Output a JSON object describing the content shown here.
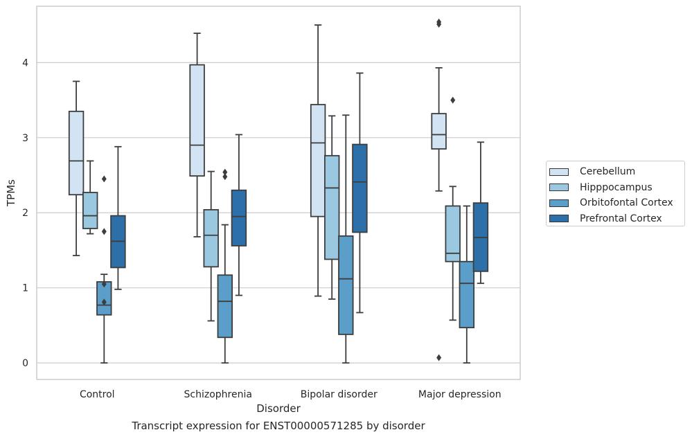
{
  "caption": "Transcript expression for ENST00000571285 by disorder",
  "chart_data": {
    "type": "boxplot",
    "xlabel": "Disorder",
    "ylabel": "TPMs",
    "ylim": [
      -0.22,
      4.75
    ],
    "yticks": [
      0,
      1,
      2,
      3,
      4
    ],
    "grid": "horizontal",
    "legend_placement": "right",
    "categories": [
      "Control",
      "Schizophrenia",
      "Bipolar disorder",
      "Major depression"
    ],
    "series": [
      {
        "name": "Cerebellum",
        "color": "#d2e3f3",
        "boxes": [
          {
            "whislo": 1.43,
            "q1": 2.24,
            "med": 2.69,
            "q3": 3.35,
            "whishi": 3.75,
            "fliers": []
          },
          {
            "whislo": 1.68,
            "q1": 2.49,
            "med": 2.9,
            "q3": 3.97,
            "whishi": 4.39,
            "fliers": []
          },
          {
            "whislo": 0.89,
            "q1": 1.95,
            "med": 2.93,
            "q3": 3.44,
            "whishi": 4.5,
            "fliers": []
          },
          {
            "whislo": 2.29,
            "q1": 2.85,
            "med": 3.04,
            "q3": 3.32,
            "whishi": 3.93,
            "fliers": [
              4.54,
              4.51,
              0.07
            ]
          }
        ]
      },
      {
        "name": "Hipppocampus",
        "color": "#9ac8e0",
        "boxes": [
          {
            "whislo": 1.72,
            "q1": 1.79,
            "med": 1.96,
            "q3": 2.27,
            "whishi": 2.69,
            "fliers": []
          },
          {
            "whislo": 0.56,
            "q1": 1.28,
            "med": 1.7,
            "q3": 2.04,
            "whishi": 2.55,
            "fliers": []
          },
          {
            "whislo": 0.85,
            "q1": 1.38,
            "med": 2.33,
            "q3": 2.76,
            "whishi": 3.29,
            "fliers": []
          },
          {
            "whislo": 0.57,
            "q1": 1.35,
            "med": 1.46,
            "q3": 2.09,
            "whishi": 2.35,
            "fliers": [
              3.5
            ]
          }
        ]
      },
      {
        "name": "Orbitofontal Cortex",
        "color": "#5a9ec9",
        "boxes": [
          {
            "whislo": 0.0,
            "q1": 0.64,
            "med": 0.77,
            "q3": 1.08,
            "whishi": 1.18,
            "fliers": [
              2.45,
              1.75,
              1.05,
              0.81
            ]
          },
          {
            "whislo": 0.0,
            "q1": 0.34,
            "med": 0.82,
            "q3": 1.17,
            "whishi": 1.84,
            "fliers": [
              2.54,
              2.48
            ]
          },
          {
            "whislo": 0.0,
            "q1": 0.38,
            "med": 1.12,
            "q3": 1.69,
            "whishi": 3.3,
            "fliers": []
          },
          {
            "whislo": 0.0,
            "q1": 0.47,
            "med": 1.06,
            "q3": 1.35,
            "whishi": 2.09,
            "fliers": []
          }
        ]
      },
      {
        "name": "Prefrontal Cortex",
        "color": "#2c6fa9",
        "boxes": [
          {
            "whislo": 0.98,
            "q1": 1.27,
            "med": 1.62,
            "q3": 1.96,
            "whishi": 2.88,
            "fliers": []
          },
          {
            "whislo": 0.9,
            "q1": 1.56,
            "med": 1.95,
            "q3": 2.3,
            "whishi": 3.04,
            "fliers": []
          },
          {
            "whislo": 0.67,
            "q1": 1.74,
            "med": 2.41,
            "q3": 2.91,
            "whishi": 3.86,
            "fliers": []
          },
          {
            "whislo": 1.06,
            "q1": 1.22,
            "med": 1.67,
            "q3": 2.13,
            "whishi": 2.94,
            "fliers": []
          }
        ]
      }
    ]
  }
}
